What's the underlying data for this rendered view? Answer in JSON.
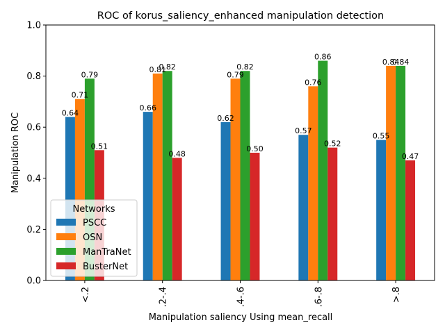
{
  "chart_data": {
    "type": "bar",
    "title": "ROC of korus_saliency_enhanced manipulation detection",
    "xlabel": "Manipulation saliency Using mean_recall",
    "ylabel": "Manipulation ROC",
    "categories": [
      "<.2",
      ".2-.4",
      ".4-.6",
      ".6-.8",
      ">.8"
    ],
    "ylim": [
      0,
      1.0
    ],
    "yticks": [
      "0.0",
      "0.2",
      "0.4",
      "0.6",
      "0.8",
      "1.0"
    ],
    "series": [
      {
        "name": "PSCC",
        "color": "#1f77b4",
        "values": [
          0.64,
          0.66,
          0.62,
          0.57,
          0.55
        ]
      },
      {
        "name": "OSN",
        "color": "#ff7f0e",
        "values": [
          0.71,
          0.81,
          0.79,
          0.76,
          0.84
        ]
      },
      {
        "name": "ManTraNet",
        "color": "#2ca02c",
        "values": [
          0.79,
          0.82,
          0.82,
          0.86,
          0.84
        ]
      },
      {
        "name": "BusterNet",
        "color": "#d62728",
        "values": [
          0.51,
          0.48,
          0.5,
          0.52,
          0.47
        ]
      }
    ],
    "legend": {
      "title": "Networks",
      "placement": "lower-left"
    },
    "grid": false
  }
}
